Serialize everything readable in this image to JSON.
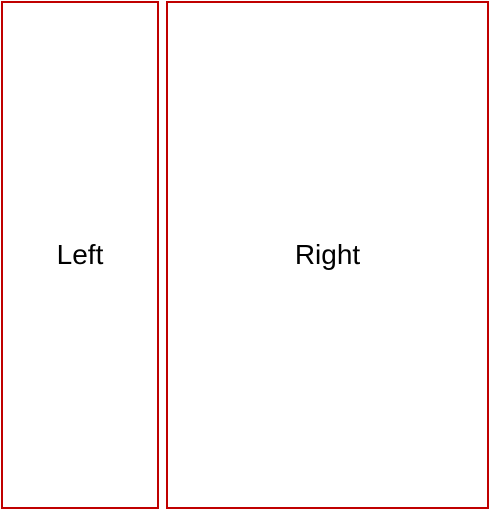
{
  "panes": {
    "left": {
      "label": "Left"
    },
    "right": {
      "label": "Right"
    }
  },
  "colors": {
    "border": "#c00000",
    "background": "#ffffff",
    "text": "#000000"
  }
}
